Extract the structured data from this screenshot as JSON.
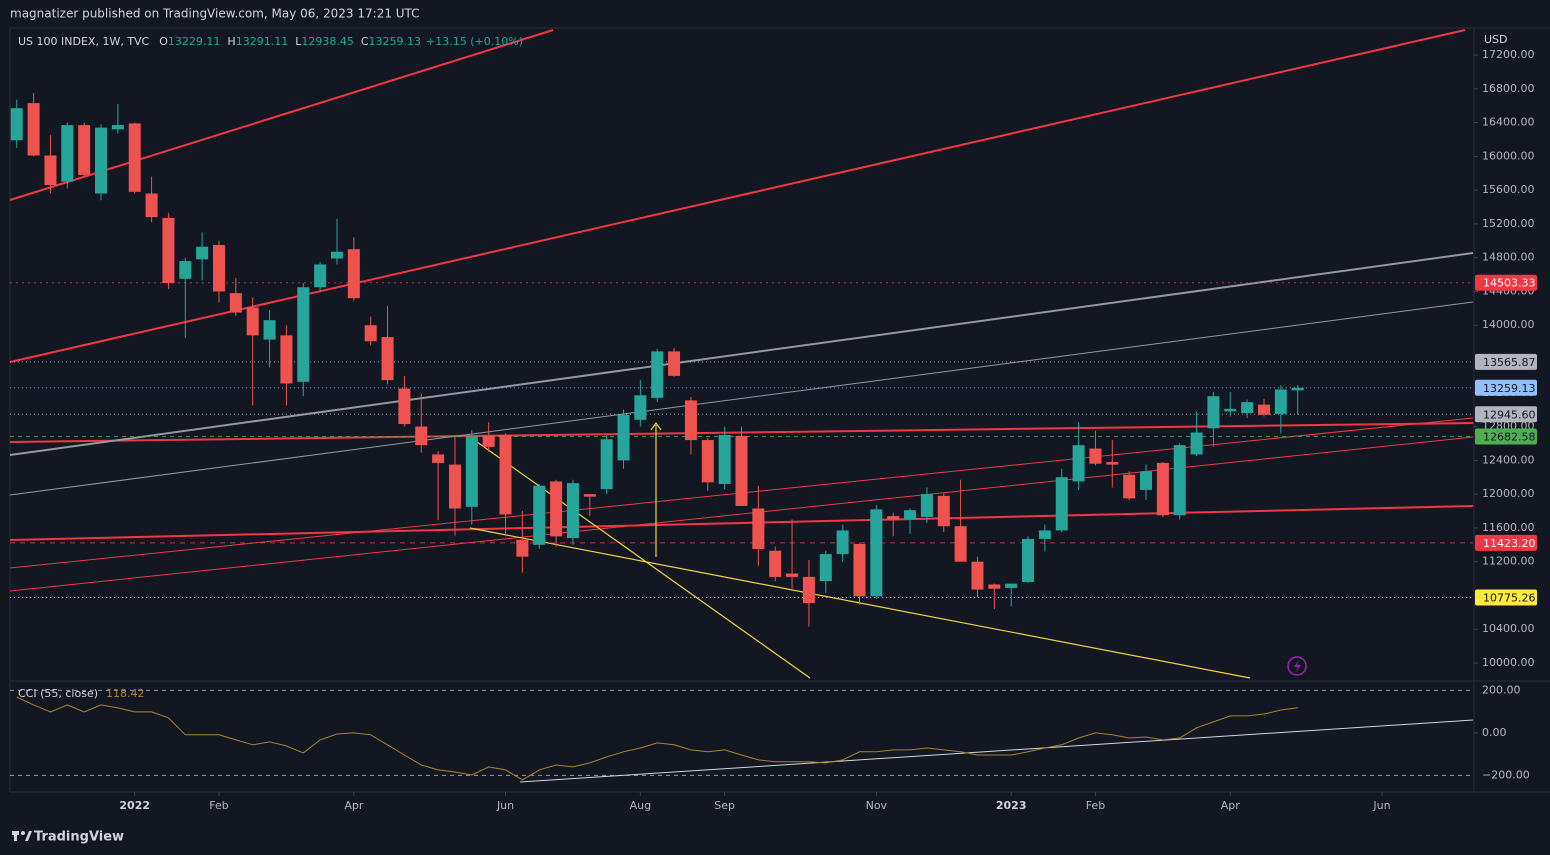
{
  "chart_data": {
    "type": "candlestick",
    "header_text": "magnatizer published on TradingView.com, May 06, 2023 17:21 UTC",
    "title": "US 100 INDEX, 1W, TVC",
    "ohlc_labels": [
      "O",
      "H",
      "L",
      "C"
    ],
    "change": "+13.15 (+0.10%)",
    "currency": "USD",
    "footer": "TradingView",
    "up_color": "#26a69a",
    "down_color": "#ef5350",
    "candles": {
      "open": [
        16190,
        16630,
        16010,
        15700,
        16370,
        15560,
        16320,
        16390,
        15560,
        15270,
        14550,
        14780,
        14950,
        14380,
        14210,
        13830,
        13880,
        13330,
        14450,
        14790,
        14900,
        14000,
        13860,
        13250,
        12800,
        12470,
        12350,
        11850,
        12690,
        12700,
        11460,
        11400,
        12150,
        11480,
        12000,
        12060,
        12400,
        12880,
        13140,
        13690,
        13110,
        12640,
        12120,
        12690,
        11830,
        11330,
        11060,
        11020,
        10970,
        11290,
        11410,
        10790,
        11740,
        11700,
        11730,
        11980,
        11620,
        11200,
        10930,
        10890,
        10960,
        11470,
        11570,
        12150,
        12540,
        12380,
        12230,
        12050,
        12370,
        11750,
        12470,
        12780,
        12980,
        12960,
        13060,
        12950,
        13229.11
      ],
      "high": [
        16670,
        16750,
        16250,
        16400,
        16400,
        16380,
        16620,
        16400,
        15760,
        15330,
        14800,
        15100,
        15000,
        14560,
        14330,
        14180,
        14000,
        14500,
        14750,
        15260,
        15040,
        14100,
        14230,
        13400,
        13190,
        12510,
        12700,
        12760,
        12850,
        12720,
        11800,
        12120,
        12170,
        12170,
        12000,
        12700,
        13000,
        13350,
        13720,
        13730,
        13150,
        12660,
        12800,
        12800,
        12100,
        11380,
        11700,
        11220,
        11330,
        11640,
        11420,
        11870,
        11780,
        11830,
        12080,
        12010,
        12170,
        11260,
        10940,
        10920,
        11500,
        11640,
        12300,
        12850,
        12750,
        12640,
        12270,
        12350,
        12380,
        12600,
        12980,
        13210,
        13210,
        13120,
        13130,
        13290,
        13291.11
      ],
      "low": [
        16100,
        16000,
        15560,
        15620,
        15750,
        15480,
        16270,
        15560,
        15220,
        14430,
        13850,
        14530,
        14270,
        14110,
        13050,
        13500,
        13050,
        13160,
        14400,
        14720,
        14290,
        13760,
        13300,
        12800,
        12490,
        11690,
        11510,
        11640,
        12500,
        11500,
        11070,
        11350,
        11380,
        11400,
        11740,
        12000,
        12300,
        12800,
        13090,
        13390,
        12470,
        12040,
        12060,
        11860,
        11150,
        10970,
        10880,
        10430,
        10830,
        11200,
        10690,
        10760,
        11500,
        11530,
        11660,
        11550,
        11200,
        10780,
        10640,
        10670,
        10950,
        11320,
        11550,
        12050,
        12340,
        12080,
        11930,
        11930,
        11730,
        11700,
        12450,
        12560,
        12920,
        12900,
        12920,
        12720,
        12938.45
      ],
      "close": [
        16570,
        16010,
        15660,
        16370,
        15780,
        16340,
        16370,
        15580,
        15280,
        14500,
        14760,
        14930,
        14400,
        14150,
        13880,
        14060,
        13310,
        14450,
        14720,
        14870,
        14320,
        13810,
        13350,
        12830,
        12580,
        12370,
        11830,
        12680,
        12560,
        11760,
        11260,
        12100,
        11500,
        12130,
        11970,
        12650,
        12940,
        13170,
        13690,
        13400,
        12640,
        12140,
        12700,
        11860,
        11350,
        11020,
        11020,
        10710,
        11290,
        11570,
        10790,
        11820,
        11700,
        11810,
        12000,
        11620,
        11200,
        10870,
        10880,
        10940,
        11470,
        11570,
        12200,
        12580,
        12360,
        12350,
        11950,
        12270,
        11750,
        12580,
        12730,
        13160,
        13010,
        13090,
        12940,
        13240,
        13259.13
      ]
    },
    "xlim": [
      -0.4,
      86.4
    ],
    "xticks": [
      {
        "value": 7,
        "label": "2022"
      },
      {
        "value": 12,
        "label": "Feb"
      },
      {
        "value": 20,
        "label": "Apr"
      },
      {
        "value": 29,
        "label": "Jun"
      },
      {
        "value": 37,
        "label": "Aug"
      },
      {
        "value": 42,
        "label": "Sep"
      },
      {
        "value": 51,
        "label": "Nov"
      },
      {
        "value": 59,
        "label": "2023"
      },
      {
        "value": 64,
        "label": "Feb"
      },
      {
        "value": 72,
        "label": "Apr"
      },
      {
        "value": 81,
        "label": "Jun"
      }
    ],
    "ylim": [
      9799,
      17496
    ],
    "yticks": [
      {
        "value": 10000,
        "label": "10000.00"
      },
      {
        "value": 10400,
        "label": "10400.00"
      },
      {
        "value": 10800,
        "label": "10800.00"
      },
      {
        "value": 11200,
        "label": "11200.00"
      },
      {
        "value": 11600,
        "label": "11600.00"
      },
      {
        "value": 12000,
        "label": "12000.00"
      },
      {
        "value": 12400,
        "label": "12400.00"
      },
      {
        "value": 12800,
        "label": "12800.00"
      },
      {
        "value": 13200,
        "label": "13200.00"
      },
      {
        "value": 13600,
        "label": "13600.00"
      },
      {
        "value": 14000,
        "label": "14000.00"
      },
      {
        "value": 14400,
        "label": "14400.00"
      },
      {
        "value": 14800,
        "label": "14800.00"
      },
      {
        "value": 15200,
        "label": "15200.00"
      },
      {
        "value": 15600,
        "label": "15600.00"
      },
      {
        "value": 16000,
        "label": "16000.00"
      },
      {
        "value": 16400,
        "label": "16400.00"
      },
      {
        "value": 16800,
        "label": "16800.00"
      },
      {
        "value": 17200,
        "label": "17200.00"
      }
    ],
    "price_lines": [
      {
        "value": 14503.33,
        "color": "#f23645",
        "text_color": "#ffffff",
        "dash": "2 4"
      },
      {
        "value": 13565.87,
        "color": "#b2b5be",
        "text_color": "#131722",
        "dash": "1 3"
      },
      {
        "value": 13259.13,
        "color": "#90bff9",
        "text_color": "#131722",
        "dash": "1 3"
      },
      {
        "value": 12945.6,
        "label": "12945.60",
        "color": "#b2b5be",
        "text_color": "#131722",
        "dash": "1 3"
      },
      {
        "value": 12682.58,
        "color": "#4caf50",
        "text_color": "#131722",
        "dash": "4 4"
      },
      {
        "value": 11423.2,
        "label": "11423.20",
        "color": "#f23645",
        "text_color": "#ffffff",
        "dash": "5 5"
      },
      {
        "value": 10775.26,
        "color": "#ffeb3b",
        "text_color": "#131722",
        "dash": "1 3"
      }
    ],
    "indicator": {
      "name": "CCI (55, close)",
      "color": "#a9852e",
      "values": [
        169,
        132,
        99,
        132,
        99,
        132,
        118,
        99,
        99,
        71,
        -9,
        -9,
        -9,
        -33,
        -56,
        -42,
        -61,
        -94,
        -33,
        -5,
        0,
        -9,
        -56,
        -104,
        -151,
        -174,
        -184,
        -198,
        -160,
        -174,
        -221,
        -174,
        -151,
        -160,
        -141,
        -113,
        -89,
        -71,
        -47,
        -56,
        -80,
        -89,
        -80,
        -104,
        -127,
        -136,
        -136,
        -136,
        -141,
        -127,
        -89,
        -89,
        -80,
        -80,
        -71,
        -80,
        -89,
        -104,
        -104,
        -104,
        -89,
        -71,
        -56,
        -24,
        0,
        -9,
        -24,
        -19,
        -33,
        -24,
        24,
        52,
        80,
        80,
        89,
        108,
        118.42
      ],
      "ylim": [
        -278,
        235
      ],
      "yticks": [
        {
          "value": 200,
          "label": "200.00"
        },
        {
          "value": 0,
          "label": "0.00"
        },
        {
          "value": -200,
          "label": "−200.00"
        }
      ]
    }
  }
}
